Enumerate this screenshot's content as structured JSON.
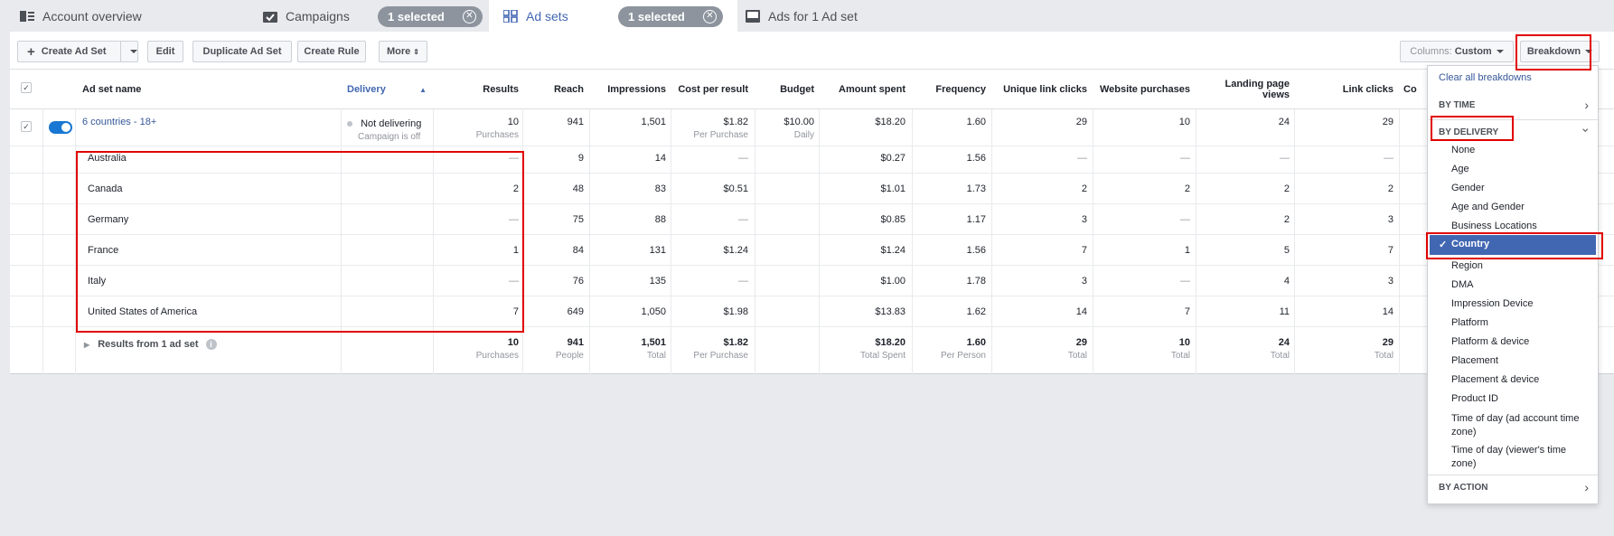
{
  "tabs": {
    "account_overview": "Account overview",
    "campaigns": "Campaigns",
    "campaigns_selected": "1 selected",
    "ad_sets": "Ad sets",
    "ad_sets_selected": "1 selected",
    "ads": "Ads for 1 Ad set"
  },
  "toolbar": {
    "create_ad_set": "Create Ad Set",
    "edit": "Edit",
    "duplicate": "Duplicate Ad Set",
    "create_rule": "Create Rule",
    "more": "More",
    "columns_label": "Columns:",
    "columns_value": "Custom",
    "breakdown": "Breakdown"
  },
  "table": {
    "headers": {
      "name": "Ad set name",
      "delivery": "Delivery",
      "results": "Results",
      "reach": "Reach",
      "impressions": "Impressions",
      "cost_per_result": "Cost per result",
      "budget": "Budget",
      "amount_spent": "Amount spent",
      "frequency": "Frequency",
      "unique_link_clicks": "Unique link clicks",
      "website_purchases": "Website purchases",
      "landing_page_views": "Landing page views",
      "link_clicks": "Link clicks",
      "cut": "Co"
    },
    "main_row": {
      "name": "6 countries - 18+",
      "delivery": "Not delivering",
      "delivery_sub": "Campaign is off",
      "results": "10",
      "results_sub": "Purchases",
      "reach": "941",
      "impressions": "1,501",
      "cost": "$1.82",
      "cost_sub": "Per Purchase",
      "budget": "$10.00",
      "budget_sub": "Daily",
      "spent": "$18.20",
      "frequency": "1.60",
      "unique_clicks": "29",
      "purchases": "10",
      "lpv": "24",
      "clicks": "29"
    },
    "country_rows": [
      {
        "name": "Australia",
        "results": "—",
        "reach": "9",
        "impressions": "14",
        "cost": "—",
        "spent": "$0.27",
        "frequency": "1.56",
        "unique_clicks": "—",
        "purchases": "—",
        "lpv": "—",
        "clicks": "—"
      },
      {
        "name": "Canada",
        "results": "2",
        "reach": "48",
        "impressions": "83",
        "cost": "$0.51",
        "spent": "$1.01",
        "frequency": "1.73",
        "unique_clicks": "2",
        "purchases": "2",
        "lpv": "2",
        "clicks": "2"
      },
      {
        "name": "Germany",
        "results": "—",
        "reach": "75",
        "impressions": "88",
        "cost": "—",
        "spent": "$0.85",
        "frequency": "1.17",
        "unique_clicks": "3",
        "purchases": "—",
        "lpv": "2",
        "clicks": "3"
      },
      {
        "name": "France",
        "results": "1",
        "reach": "84",
        "impressions": "131",
        "cost": "$1.24",
        "spent": "$1.24",
        "frequency": "1.56",
        "unique_clicks": "7",
        "purchases": "1",
        "lpv": "5",
        "clicks": "7"
      },
      {
        "name": "Italy",
        "results": "—",
        "reach": "76",
        "impressions": "135",
        "cost": "—",
        "spent": "$1.00",
        "frequency": "1.78",
        "unique_clicks": "3",
        "purchases": "—",
        "lpv": "4",
        "clicks": "3"
      },
      {
        "name": "United States of America",
        "results": "7",
        "reach": "649",
        "impressions": "1,050",
        "cost": "$1.98",
        "spent": "$13.83",
        "frequency": "1.62",
        "unique_clicks": "14",
        "purchases": "7",
        "lpv": "11",
        "clicks": "14"
      }
    ],
    "totals": {
      "label": "Results from 1 ad set",
      "results": "10",
      "results_sub": "Purchases",
      "reach": "941",
      "reach_sub": "People",
      "impressions": "1,501",
      "impressions_sub": "Total",
      "cost": "$1.82",
      "cost_sub": "Per Purchase",
      "spent": "$18.20",
      "spent_sub": "Total Spent",
      "frequency": "1.60",
      "frequency_sub": "Per Person",
      "unique_clicks": "29",
      "unique_clicks_sub": "Total",
      "purchases": "10",
      "purchases_sub": "Total",
      "lpv": "24",
      "lpv_sub": "Total",
      "clicks": "29",
      "clicks_sub": "Total"
    }
  },
  "breakdown_menu": {
    "clear": "Clear all breakdowns",
    "by_time": "BY TIME",
    "by_delivery": "BY DELIVERY",
    "items": [
      "None",
      "Age",
      "Gender",
      "Age and Gender",
      "Business Locations",
      "Country",
      "Region",
      "DMA",
      "Impression Device",
      "Platform",
      "Platform & device",
      "Placement",
      "Placement & device",
      "Product ID"
    ],
    "time_of_day_account": "Time of day (ad account time zone)",
    "time_of_day_viewer": "Time of day (viewer's time zone)",
    "by_action": "BY ACTION",
    "selected": "Country"
  },
  "colors": {
    "accent": "#4267b2",
    "link": "#365899",
    "highlight": "#e00000"
  }
}
